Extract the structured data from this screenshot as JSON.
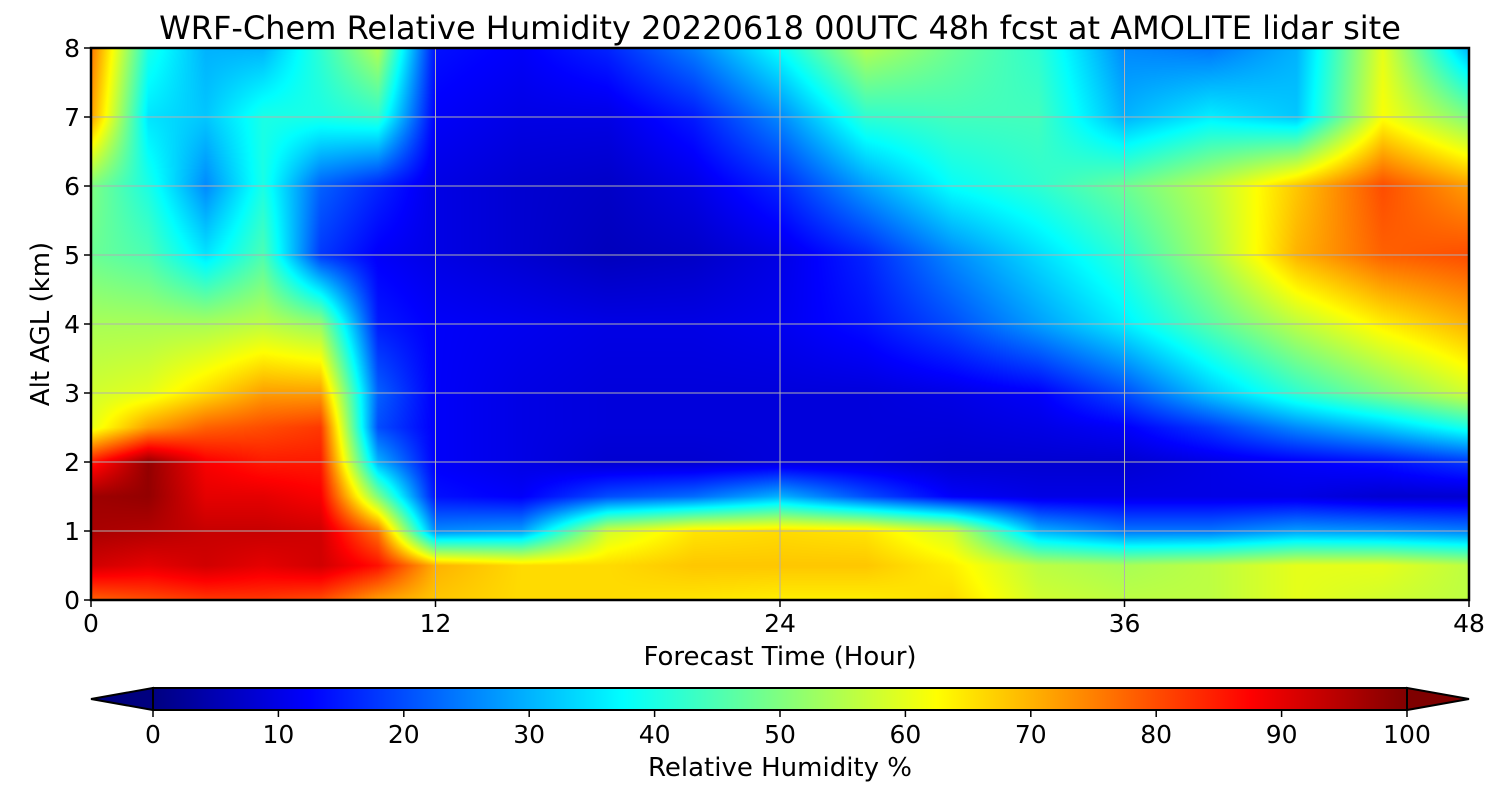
{
  "chart_data": {
    "type": "heatmap",
    "title": "WRF-Chem Relative Humidity 20220618 00UTC 48h fcst at AMOLITE lidar site",
    "xlabel": "Forecast Time (Hour)",
    "ylabel": "Alt AGL (km)",
    "xlim": [
      0,
      48
    ],
    "ylim": [
      0,
      8
    ],
    "x_ticks": [
      "0",
      "12",
      "24",
      "36",
      "48"
    ],
    "y_ticks": [
      "0",
      "1",
      "2",
      "3",
      "4",
      "5",
      "6",
      "7",
      "8"
    ],
    "grid": true,
    "colormap": "jet",
    "colorbar": {
      "label": "Relative Humidity %",
      "range": [
        0,
        100
      ],
      "ticks": [
        "0",
        "10",
        "20",
        "30",
        "40",
        "50",
        "60",
        "70",
        "80",
        "90",
        "100"
      ],
      "extend": "both",
      "orientation": "horizontal",
      "placement": "bottom"
    },
    "x": [
      0,
      2,
      4,
      6,
      8,
      10,
      12,
      15,
      18,
      21,
      24,
      27,
      30,
      33,
      36,
      39,
      42,
      45,
      48
    ],
    "y": [
      0,
      0.5,
      1,
      1.5,
      2,
      2.5,
      3,
      4,
      5,
      6,
      7,
      8
    ],
    "z": [
      [
        78,
        80,
        82,
        82,
        80,
        72,
        68,
        66,
        66,
        65,
        64,
        64,
        66,
        58,
        56,
        56,
        60,
        58,
        56
      ],
      [
        92,
        90,
        92,
        90,
        92,
        86,
        70,
        66,
        66,
        68,
        68,
        68,
        64,
        56,
        54,
        56,
        60,
        60,
        56
      ],
      [
        96,
        95,
        93,
        93,
        92,
        76,
        26,
        28,
        58,
        65,
        66,
        65,
        58,
        30,
        24,
        24,
        28,
        27,
        25
      ],
      [
        97,
        98,
        90,
        90,
        88,
        50,
        14,
        12,
        20,
        23,
        30,
        20,
        12,
        10,
        10,
        10,
        10,
        8,
        8
      ],
      [
        85,
        98,
        88,
        85,
        85,
        30,
        12,
        10,
        8,
        8,
        9,
        9,
        8,
        8,
        8,
        10,
        12,
        14,
        18
      ],
      [
        60,
        72,
        78,
        80,
        82,
        20,
        12,
        10,
        9,
        9,
        9,
        9,
        9,
        10,
        12,
        18,
        26,
        32,
        40
      ],
      [
        58,
        60,
        66,
        72,
        72,
        22,
        12,
        10,
        9,
        9,
        9,
        9,
        10,
        12,
        20,
        32,
        42,
        50,
        58
      ],
      [
        54,
        54,
        54,
        56,
        52,
        15,
        12,
        11,
        10,
        10,
        11,
        14,
        20,
        28,
        36,
        46,
        56,
        64,
        70
      ],
      [
        48,
        45,
        35,
        45,
        18,
        12,
        10,
        8,
        6,
        7,
        10,
        16,
        26,
        34,
        42,
        54,
        70,
        78,
        80
      ],
      [
        50,
        40,
        26,
        40,
        22,
        16,
        10,
        8,
        7,
        10,
        16,
        28,
        38,
        42,
        48,
        56,
        68,
        80,
        72
      ],
      [
        72,
        35,
        32,
        40,
        40,
        42,
        12,
        10,
        10,
        15,
        26,
        42,
        44,
        44,
        30,
        36,
        32,
        62,
        50
      ],
      [
        76,
        40,
        30,
        30,
        42,
        55,
        14,
        12,
        16,
        25,
        38,
        55,
        48,
        42,
        26,
        24,
        30,
        60,
        30
      ]
    ]
  }
}
